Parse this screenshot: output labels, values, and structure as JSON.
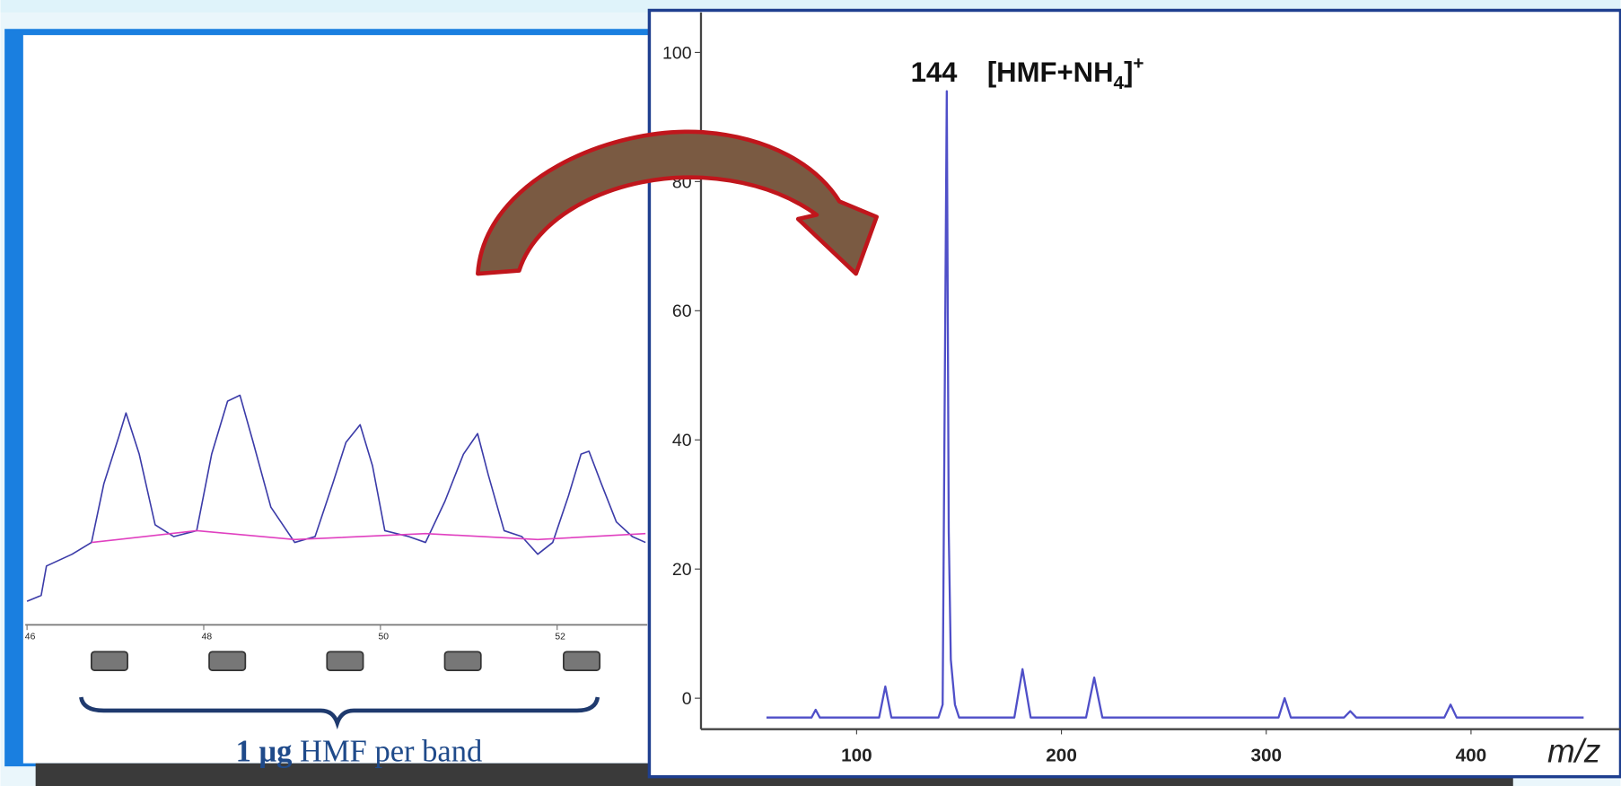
{
  "chart_data": [
    {
      "type": "line",
      "x": [
        46.0,
        46.16,
        46.22,
        46.51,
        46.73,
        46.87,
        47.04,
        47.12,
        47.27,
        47.45,
        47.66,
        47.92,
        48.09,
        48.27,
        48.41,
        48.56,
        48.76,
        49.03,
        49.26,
        49.46,
        49.61,
        49.77,
        49.91,
        50.05,
        50.32,
        50.51,
        50.73,
        50.94,
        51.1,
        51.22,
        51.4,
        51.6,
        51.78,
        51.95,
        52.13,
        52.27,
        52.36,
        52.5,
        52.67,
        52.85,
        53.0
      ],
      "series": [
        {
          "color": "#3b3ba8",
          "values": [
            4,
            5,
            10,
            12,
            14,
            24,
            32,
            36,
            29,
            17,
            15,
            16,
            29,
            38,
            39,
            31,
            20,
            14,
            15,
            24,
            31,
            34,
            27,
            16,
            15,
            14,
            21,
            29,
            32.5,
            25.5,
            16,
            15,
            12,
            14,
            22,
            29,
            29.5,
            24,
            17.5,
            15,
            14
          ]
        },
        {
          "color": "#e040c0",
          "x": [
            46.73,
            47.92,
            49.03,
            50.51,
            51.78,
            53.0
          ],
          "values": [
            14,
            16,
            14.5,
            15.5,
            14.5,
            15.5
          ]
        }
      ],
      "xlim": [
        45.98,
        53.02
      ],
      "ylim": [
        0,
        100
      ],
      "xticks": [
        46,
        48,
        50,
        52
      ],
      "annotations": [
        "1 μg",
        "HMF per band"
      ]
    },
    {
      "type": "line",
      "x": [
        56,
        78,
        80,
        82,
        111,
        114,
        117,
        140,
        142,
        144,
        145,
        146,
        148,
        150,
        177,
        181,
        185,
        212,
        216,
        220,
        306,
        309,
        312,
        338,
        341,
        344,
        387,
        390,
        393,
        455
      ],
      "values": [
        -3,
        -3,
        -1.8,
        -3,
        -3,
        1.8,
        -3,
        -3,
        -1,
        94,
        25.8,
        6,
        -1,
        -3,
        -3,
        4.5,
        -3,
        -3,
        3.2,
        -3,
        -3,
        0,
        -3,
        -3,
        -2,
        -3,
        -3,
        -1,
        -3,
        -3
      ],
      "color": "#4f4fc8",
      "xlim": [
        24,
        473
      ],
      "ylim": [
        -4.8,
        106.2
      ],
      "xticks": [
        100,
        200,
        300,
        400
      ],
      "yticks": [
        0,
        20,
        40,
        60,
        80,
        100
      ],
      "xlabel": "m/z",
      "annotations": {
        "peak": "144",
        "ion": [
          "[HMF+NH",
          "4",
          "]",
          "+"
        ]
      }
    }
  ]
}
